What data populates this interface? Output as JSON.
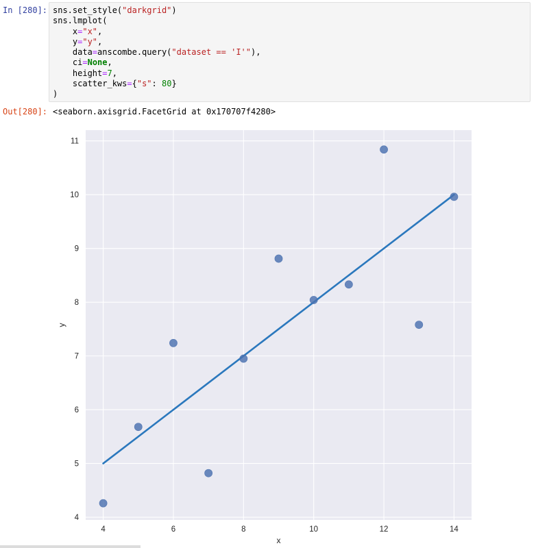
{
  "input_prompt": "In [280]:",
  "output_prompt": "Out[280]:",
  "code_lines": [
    [
      {
        "t": "sns.set_style(",
        "c": ""
      },
      {
        "t": "\"darkgrid\"",
        "c": "str"
      },
      {
        "t": ")",
        "c": ""
      }
    ],
    [
      {
        "t": "sns.lmplot(",
        "c": ""
      }
    ],
    [
      {
        "t": "    x",
        "c": ""
      },
      {
        "t": "=",
        "c": "op"
      },
      {
        "t": "\"x\"",
        "c": "str"
      },
      {
        "t": ",",
        "c": ""
      }
    ],
    [
      {
        "t": "    y",
        "c": ""
      },
      {
        "t": "=",
        "c": "op"
      },
      {
        "t": "\"y\"",
        "c": "str"
      },
      {
        "t": ",",
        "c": ""
      }
    ],
    [
      {
        "t": "    data",
        "c": ""
      },
      {
        "t": "=",
        "c": "op"
      },
      {
        "t": "anscombe.query(",
        "c": ""
      },
      {
        "t": "\"dataset == 'I'\"",
        "c": "str"
      },
      {
        "t": "),",
        "c": ""
      }
    ],
    [
      {
        "t": "    ci",
        "c": ""
      },
      {
        "t": "=",
        "c": "op"
      },
      {
        "t": "None",
        "c": "kw"
      },
      {
        "t": ",",
        "c": ""
      }
    ],
    [
      {
        "t": "    height",
        "c": ""
      },
      {
        "t": "=",
        "c": "op"
      },
      {
        "t": "7",
        "c": "num"
      },
      {
        "t": ",",
        "c": ""
      }
    ],
    [
      {
        "t": "    scatter_kws",
        "c": ""
      },
      {
        "t": "=",
        "c": "op"
      },
      {
        "t": "{",
        "c": ""
      },
      {
        "t": "\"s\"",
        "c": "str"
      },
      {
        "t": ": ",
        "c": ""
      },
      {
        "t": "80",
        "c": "num"
      },
      {
        "t": "}",
        "c": ""
      }
    ],
    [
      {
        "t": ")",
        "c": ""
      }
    ]
  ],
  "output_text": "<seaborn.axisgrid.FacetGrid at 0x170707f4280>",
  "colors": {
    "axes_bg": "#eaeaf2",
    "grid": "#ffffff",
    "point": "#4c72b0",
    "line": "#2b78bd",
    "tick_text": "#262626"
  },
  "chart_data": {
    "type": "scatter",
    "xlabel": "x",
    "ylabel": "y",
    "xlim": [
      3.5,
      14.5
    ],
    "ylim": [
      3.95,
      11.2
    ],
    "xticks": [
      4,
      6,
      8,
      10,
      12,
      14
    ],
    "yticks": [
      4,
      5,
      6,
      7,
      8,
      9,
      10,
      11
    ],
    "grid": true,
    "points": [
      {
        "x": 10,
        "y": 8.04
      },
      {
        "x": 8,
        "y": 6.95
      },
      {
        "x": 13,
        "y": 7.58
      },
      {
        "x": 9,
        "y": 8.81
      },
      {
        "x": 11,
        "y": 8.33
      },
      {
        "x": 14,
        "y": 9.96
      },
      {
        "x": 6,
        "y": 7.24
      },
      {
        "x": 4,
        "y": 4.26
      },
      {
        "x": 12,
        "y": 10.84
      },
      {
        "x": 7,
        "y": 4.82
      },
      {
        "x": 5,
        "y": 5.68
      }
    ],
    "fit_line": {
      "x": [
        4,
        14
      ],
      "y": [
        5.0,
        10.0
      ]
    }
  }
}
